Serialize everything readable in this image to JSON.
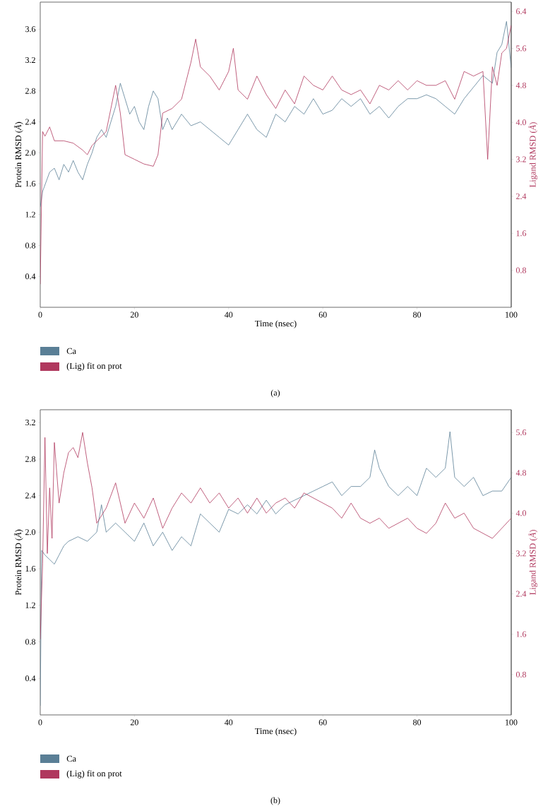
{
  "chart_data": [
    {
      "type": "line",
      "xlabel": "Time (nsec)",
      "ylabel": "Protein RMSD (*Å*)",
      "y2label": "Ligand RMSD (*Å*)",
      "xlim": [
        0,
        100
      ],
      "ylim": [
        0,
        3.95
      ],
      "y2lim": [
        0,
        6.6
      ],
      "xticks": [
        0,
        20,
        40,
        60,
        80,
        100
      ],
      "yticks": [
        0.4,
        0.8,
        1.2,
        1.6,
        {
          "value": 2,
          "label": "2.0"
        },
        2.4,
        2.8,
        3.2,
        3.6
      ],
      "y2ticks": [
        0.8,
        1.6,
        2.4,
        3.2,
        {
          "value": 4,
          "label": "4.0"
        },
        4.8,
        5.6,
        6.4
      ],
      "legend": "bottom left",
      "annotations": [
        "(a)"
      ],
      "series": [
        {
          "name": "Ca",
          "color": "#5a7f96",
          "axis": "y",
          "x": [
            0,
            0.5,
            2,
            3,
            4,
            5,
            6,
            7,
            8,
            9,
            10,
            11,
            12,
            13,
            14,
            15,
            16,
            17,
            18,
            19,
            20,
            21,
            22,
            23,
            24,
            25,
            26,
            27,
            28,
            30,
            32,
            34,
            36,
            38,
            40,
            42,
            44,
            46,
            48,
            50,
            52,
            54,
            56,
            58,
            60,
            62,
            64,
            66,
            68,
            70,
            72,
            74,
            76,
            78,
            80,
            82,
            84,
            86,
            88,
            90,
            92,
            94,
            96,
            97,
            98,
            99,
            100
          ],
          "values": [
            1.3,
            1.5,
            1.75,
            1.8,
            1.65,
            1.85,
            1.75,
            1.9,
            1.75,
            1.65,
            1.85,
            2.0,
            2.2,
            2.3,
            2.2,
            2.4,
            2.6,
            2.9,
            2.7,
            2.5,
            2.6,
            2.4,
            2.3,
            2.6,
            2.8,
            2.7,
            2.3,
            2.45,
            2.3,
            2.5,
            2.35,
            2.4,
            2.3,
            2.2,
            2.1,
            2.3,
            2.5,
            2.3,
            2.2,
            2.5,
            2.4,
            2.6,
            2.5,
            2.7,
            2.5,
            2.55,
            2.7,
            2.6,
            2.7,
            2.5,
            2.6,
            2.45,
            2.6,
            2.7,
            2.7,
            2.75,
            2.7,
            2.6,
            2.5,
            2.7,
            2.85,
            3.0,
            2.9,
            3.3,
            3.4,
            3.7,
            3.1
          ]
        },
        {
          "name": "(Lig) fit on prot",
          "color": "#b0385e",
          "axis": "y2",
          "x": [
            0,
            0.5,
            1,
            2,
            3,
            5,
            7,
            9,
            10,
            11,
            12,
            14,
            15,
            16,
            17,
            18,
            20,
            22,
            24,
            25,
            26,
            28,
            30,
            32,
            33,
            34,
            36,
            38,
            40,
            41,
            42,
            44,
            46,
            48,
            50,
            52,
            54,
            56,
            58,
            60,
            62,
            64,
            66,
            68,
            70,
            72,
            74,
            76,
            78,
            80,
            82,
            84,
            86,
            88,
            90,
            92,
            94,
            95,
            96,
            97,
            98,
            99,
            100
          ],
          "values": [
            0.5,
            3.8,
            3.7,
            3.9,
            3.6,
            3.6,
            3.55,
            3.4,
            3.3,
            3.5,
            3.6,
            3.8,
            4.3,
            4.8,
            4.2,
            3.3,
            3.2,
            3.1,
            3.05,
            3.3,
            4.2,
            4.3,
            4.5,
            5.3,
            5.8,
            5.2,
            5.0,
            4.7,
            5.1,
            5.6,
            4.7,
            4.5,
            5.0,
            4.6,
            4.3,
            4.7,
            4.4,
            5.0,
            4.8,
            4.7,
            5.0,
            4.7,
            4.6,
            4.7,
            4.4,
            4.8,
            4.7,
            4.9,
            4.7,
            4.9,
            4.8,
            4.8,
            4.9,
            4.5,
            5.1,
            5.0,
            5.1,
            3.2,
            5.2,
            4.8,
            5.5,
            5.6,
            6.1
          ]
        }
      ]
    },
    {
      "type": "line",
      "xlabel": "Time (nsec)",
      "ylabel": "Protein RMSD (*Å*)",
      "y2label": "Ligand RMSD (*Å*)",
      "xlim": [
        0,
        100
      ],
      "ylim": [
        0,
        3.34
      ],
      "y2lim": [
        0,
        6.05
      ],
      "xticks": [
        0,
        20,
        40,
        60,
        80,
        100
      ],
      "yticks": [
        0.4,
        0.8,
        1.2,
        1.6,
        {
          "value": 2,
          "label": "2.0"
        },
        2.4,
        2.8,
        3.2
      ],
      "y2ticks": [
        0.8,
        1.6,
        2.4,
        3.2,
        {
          "value": 4,
          "label": "4.0"
        },
        4.8,
        5.6
      ],
      "legend": "bottom left",
      "annotations": [
        "(b)"
      ],
      "series": [
        {
          "name": "Ca",
          "color": "#5a7f96",
          "axis": "y",
          "x": [
            0,
            0.3,
            1,
            2,
            3,
            4,
            5,
            6,
            8,
            10,
            12,
            13,
            14,
            16,
            18,
            20,
            22,
            24,
            26,
            28,
            30,
            32,
            34,
            36,
            38,
            40,
            42,
            44,
            46,
            48,
            50,
            52,
            54,
            56,
            58,
            60,
            62,
            64,
            66,
            68,
            70,
            71,
            72,
            74,
            76,
            78,
            80,
            82,
            84,
            86,
            87,
            88,
            90,
            92,
            94,
            96,
            98,
            100
          ],
          "values": [
            0.1,
            1.8,
            1.75,
            1.7,
            1.65,
            1.75,
            1.85,
            1.9,
            1.95,
            1.9,
            2.0,
            2.3,
            2.0,
            2.1,
            2.0,
            1.9,
            2.1,
            1.85,
            2.0,
            1.8,
            1.95,
            1.85,
            2.2,
            2.1,
            2.0,
            2.25,
            2.2,
            2.3,
            2.2,
            2.35,
            2.2,
            2.3,
            2.35,
            2.4,
            2.45,
            2.5,
            2.55,
            2.4,
            2.5,
            2.5,
            2.6,
            2.9,
            2.7,
            2.5,
            2.4,
            2.5,
            2.4,
            2.7,
            2.6,
            2.7,
            3.1,
            2.6,
            2.5,
            2.6,
            2.4,
            2.45,
            2.45,
            2.6
          ]
        },
        {
          "name": "(Lig) fit on prot",
          "color": "#b0385e",
          "axis": "y2",
          "x": [
            0,
            0.5,
            1,
            1.5,
            2,
            2.5,
            3,
            4,
            5,
            6,
            7,
            8,
            9,
            10,
            11,
            12,
            14,
            16,
            18,
            20,
            22,
            24,
            26,
            28,
            30,
            32,
            34,
            36,
            38,
            40,
            42,
            44,
            46,
            48,
            50,
            52,
            54,
            56,
            58,
            60,
            62,
            64,
            66,
            68,
            70,
            72,
            74,
            76,
            78,
            80,
            82,
            84,
            86,
            88,
            90,
            92,
            94,
            96,
            98,
            100
          ],
          "values": [
            1.5,
            3.0,
            5.5,
            3.2,
            4.5,
            3.5,
            5.4,
            4.2,
            4.8,
            5.2,
            5.3,
            5.1,
            5.6,
            5.0,
            4.5,
            3.8,
            4.1,
            4.6,
            3.8,
            4.2,
            3.9,
            4.3,
            3.7,
            4.1,
            4.4,
            4.2,
            4.5,
            4.2,
            4.4,
            4.1,
            4.3,
            4.0,
            4.3,
            4.0,
            4.2,
            4.3,
            4.1,
            4.4,
            4.3,
            4.2,
            4.1,
            3.9,
            4.2,
            3.9,
            3.8,
            3.9,
            3.7,
            3.8,
            3.9,
            3.7,
            3.6,
            3.8,
            4.2,
            3.9,
            4.0,
            3.7,
            3.6,
            3.5,
            3.7,
            3.9
          ]
        }
      ]
    }
  ]
}
